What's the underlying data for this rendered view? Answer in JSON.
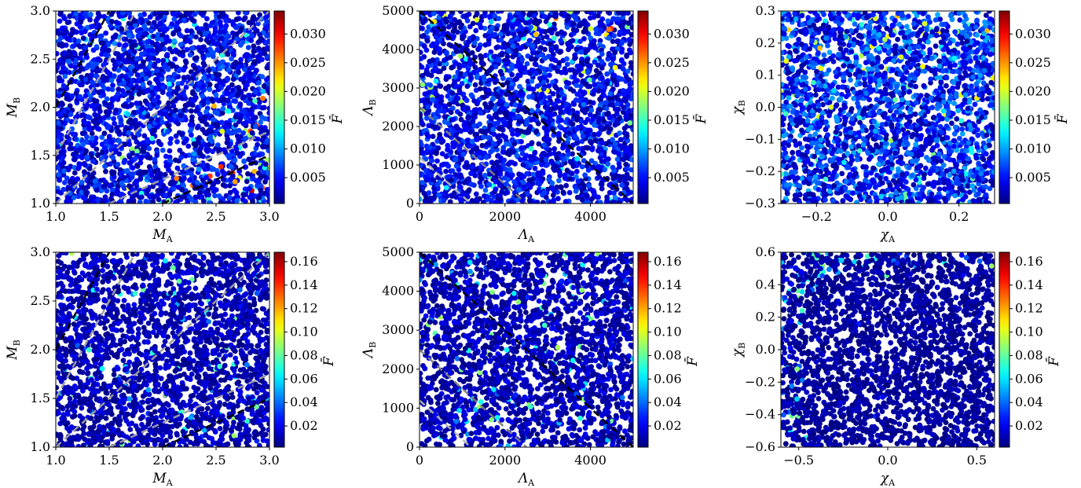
{
  "chart_data": [
    {
      "type": "scatter",
      "xlabel": "M_A",
      "ylabel": "M_B",
      "xlim": [
        1.0,
        3.0
      ],
      "ylim": [
        1.0,
        3.0
      ],
      "xticks": [
        "1.0",
        "1.5",
        "2.0",
        "2.5",
        "3.0"
      ],
      "xtick_values": [
        1.0,
        1.5,
        2.0,
        2.5,
        3.0
      ],
      "yticks": [
        "1.0",
        "1.5",
        "2.0",
        "2.5",
        "3.0"
      ],
      "ytick_values": [
        1.0,
        1.5,
        2.0,
        2.5,
        3.0
      ],
      "colorbar": {
        "label": "F̄",
        "range": [
          0.0005,
          0.034
        ],
        "ticks": [
          "0.005",
          "0.010",
          "0.015",
          "0.020",
          "0.025",
          "0.030"
        ],
        "tick_values": [
          0.005,
          0.01,
          0.015,
          0.02,
          0.025,
          0.03
        ]
      },
      "colormap": "jet",
      "scatter": {
        "n_points": 2600,
        "value_median": 0.0045,
        "value_max": 0.032,
        "hot_region": "lower-right"
      },
      "reference_lines": [
        {
          "color": "#000000",
          "points": [
            [
              1.0,
              2.0
            ],
            [
              1.5,
              3.0
            ]
          ]
        },
        {
          "color": "#000000",
          "points": [
            [
              2.0,
              1.0
            ],
            [
              3.0,
              1.5
            ]
          ]
        },
        {
          "color": "#a0a0a0",
          "points": [
            [
              1.0,
              1.5
            ],
            [
              1.75,
              3.0
            ]
          ]
        },
        {
          "color": "#a0a0a0",
          "points": [
            [
              1.5,
              1.0
            ],
            [
              3.0,
              1.75
            ]
          ]
        },
        {
          "color": "#a0a0a0",
          "points": [
            [
              1.0,
              1.0
            ],
            [
              3.0,
              3.0
            ]
          ]
        }
      ],
      "grid": false
    },
    {
      "type": "scatter",
      "xlabel": "Λ_A",
      "ylabel": "Λ_B",
      "xlim": [
        0,
        5000
      ],
      "ylim": [
        0,
        5000
      ],
      "xticks": [
        "0",
        "2000",
        "4000"
      ],
      "xtick_values": [
        0,
        2000,
        4000
      ],
      "yticks": [
        "0",
        "1000",
        "2000",
        "3000",
        "4000",
        "5000"
      ],
      "ytick_values": [
        0,
        1000,
        2000,
        3000,
        4000,
        5000
      ],
      "colorbar": {
        "label": "F̄",
        "range": [
          0.0005,
          0.034
        ],
        "ticks": [
          "0.005",
          "0.010",
          "0.015",
          "0.020",
          "0.025",
          "0.030"
        ],
        "tick_values": [
          0.005,
          0.01,
          0.015,
          0.02,
          0.025,
          0.03
        ]
      },
      "colormap": "jet",
      "scatter": {
        "n_points": 2600,
        "value_median": 0.0045,
        "value_max": 0.032,
        "hot_region": "top-right"
      },
      "reference_lines": [
        {
          "color": "#000000",
          "points": [
            [
              0,
              5000
            ],
            [
              5000,
              0
            ]
          ]
        },
        {
          "color": "#808080",
          "points": [
            [
              0,
              2500
            ],
            [
              2500,
              0
            ]
          ]
        },
        {
          "color": "#b4b4b4",
          "points": [
            [
              0,
              1200
            ],
            [
              1200,
              0
            ]
          ]
        }
      ],
      "grid": false
    },
    {
      "type": "scatter",
      "xlabel": "χ_A",
      "ylabel": "χ_B",
      "xlim": [
        -0.3,
        0.3
      ],
      "ylim": [
        -0.3,
        0.3
      ],
      "xticks": [
        "−0.2",
        "0.0",
        "0.2"
      ],
      "xtick_values": [
        -0.2,
        0.0,
        0.2
      ],
      "yticks": [
        "−0.3",
        "−0.2",
        "−0.1",
        "0.0",
        "0.1",
        "0.2",
        "0.3"
      ],
      "ytick_values": [
        -0.3,
        -0.2,
        -0.1,
        0.0,
        0.1,
        0.2,
        0.3
      ],
      "colorbar": {
        "label": "F̄",
        "range": [
          0.0005,
          0.034
        ],
        "ticks": [
          "0.005",
          "0.010",
          "0.015",
          "0.020",
          "0.025",
          "0.030"
        ],
        "tick_values": [
          0.005,
          0.01,
          0.015,
          0.02,
          0.025,
          0.03
        ]
      },
      "colormap": "jet",
      "scatter": {
        "n_points": 2600,
        "value_median": 0.006,
        "value_max": 0.03,
        "hot_region": "top"
      },
      "reference_lines": [],
      "grid": false
    },
    {
      "type": "scatter",
      "xlabel": "M_A",
      "ylabel": "M_B",
      "xlim": [
        1.0,
        3.0
      ],
      "ylim": [
        1.0,
        3.0
      ],
      "xticks": [
        "1.0",
        "1.5",
        "2.0",
        "2.5",
        "3.0"
      ],
      "xtick_values": [
        1.0,
        1.5,
        2.0,
        2.5,
        3.0
      ],
      "yticks": [
        "1.0",
        "1.5",
        "2.0",
        "2.5",
        "3.0"
      ],
      "ytick_values": [
        1.0,
        1.5,
        2.0,
        2.5,
        3.0
      ],
      "colorbar": {
        "label": "F̄",
        "range": [
          0.002,
          0.168
        ],
        "ticks": [
          "0.02",
          "0.04",
          "0.06",
          "0.08",
          "0.10",
          "0.12",
          "0.14",
          "0.16"
        ],
        "tick_values": [
          0.02,
          0.04,
          0.06,
          0.08,
          0.1,
          0.12,
          0.14,
          0.16
        ]
      },
      "colormap": "jet",
      "scatter": {
        "n_points": 2600,
        "value_median": 0.012,
        "value_max": 0.16,
        "hot_region": "scattered"
      },
      "reference_lines": [
        {
          "color": "#000000",
          "points": [
            [
              1.0,
              2.0
            ],
            [
              1.5,
              3.0
            ]
          ]
        },
        {
          "color": "#000000",
          "points": [
            [
              2.0,
              1.0
            ],
            [
              3.0,
              1.5
            ]
          ]
        },
        {
          "color": "#a0a0a0",
          "points": [
            [
              1.0,
              1.5
            ],
            [
              1.75,
              3.0
            ]
          ]
        },
        {
          "color": "#a0a0a0",
          "points": [
            [
              1.5,
              1.0
            ],
            [
              3.0,
              1.75
            ]
          ]
        },
        {
          "color": "#a0a0a0",
          "points": [
            [
              1.0,
              1.0
            ],
            [
              3.0,
              3.0
            ]
          ]
        }
      ],
      "grid": false
    },
    {
      "type": "scatter",
      "xlabel": "Λ_A",
      "ylabel": "Λ_B",
      "xlim": [
        0,
        5000
      ],
      "ylim": [
        0,
        5000
      ],
      "xticks": [
        "0",
        "2000",
        "4000"
      ],
      "xtick_values": [
        0,
        2000,
        4000
      ],
      "yticks": [
        "0",
        "1000",
        "2000",
        "3000",
        "4000",
        "5000"
      ],
      "ytick_values": [
        0,
        1000,
        2000,
        3000,
        4000,
        5000
      ],
      "colorbar": {
        "label": "F̄",
        "range": [
          0.002,
          0.168
        ],
        "ticks": [
          "0.02",
          "0.04",
          "0.06",
          "0.08",
          "0.10",
          "0.12",
          "0.14",
          "0.16"
        ],
        "tick_values": [
          0.02,
          0.04,
          0.06,
          0.08,
          0.1,
          0.12,
          0.14,
          0.16
        ]
      },
      "colormap": "jet",
      "scatter": {
        "n_points": 2600,
        "value_median": 0.012,
        "value_max": 0.16,
        "hot_region": "scattered"
      },
      "reference_lines": [
        {
          "color": "#000000",
          "points": [
            [
              0,
              5000
            ],
            [
              5000,
              0
            ]
          ]
        },
        {
          "color": "#808080",
          "points": [
            [
              0,
              2500
            ],
            [
              2500,
              0
            ]
          ]
        },
        {
          "color": "#b4b4b4",
          "points": [
            [
              0,
              1200
            ],
            [
              1200,
              0
            ]
          ]
        }
      ],
      "grid": false
    },
    {
      "type": "scatter",
      "xlabel": "χ_A",
      "ylabel": "χ_B",
      "xlim": [
        -0.6,
        0.6
      ],
      "ylim": [
        -0.6,
        0.6
      ],
      "xticks": [
        "−0.5",
        "0.0",
        "0.5"
      ],
      "xtick_values": [
        -0.5,
        0.0,
        0.5
      ],
      "yticks": [
        "−0.6",
        "−0.4",
        "−0.2",
        "0.0",
        "0.2",
        "0.4",
        "0.6"
      ],
      "ytick_values": [
        -0.6,
        -0.4,
        -0.2,
        0.0,
        0.2,
        0.4,
        0.6
      ],
      "colorbar": {
        "label": "F̄",
        "range": [
          0.002,
          0.168
        ],
        "ticks": [
          "0.02",
          "0.04",
          "0.06",
          "0.08",
          "0.10",
          "0.12",
          "0.14",
          "0.16"
        ],
        "tick_values": [
          0.02,
          0.04,
          0.06,
          0.08,
          0.1,
          0.12,
          0.14,
          0.16
        ]
      },
      "colormap": "jet",
      "scatter": {
        "n_points": 2600,
        "value_median": 0.008,
        "value_max": 0.09,
        "hot_region": "left-bottom-corners"
      },
      "reference_lines": [],
      "grid": false
    }
  ]
}
